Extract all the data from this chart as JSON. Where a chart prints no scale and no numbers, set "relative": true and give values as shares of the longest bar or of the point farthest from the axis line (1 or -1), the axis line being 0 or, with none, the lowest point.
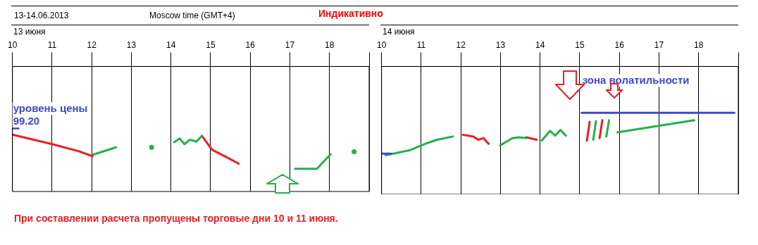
{
  "chart_data": [
    {
      "type": "line",
      "title": "13-14.06.2013",
      "subtitle": "13 июня",
      "relative": true,
      "grid": "x",
      "legend": false,
      "marker": "none",
      "line_style": "solid",
      "xlim": [
        10,
        19
      ],
      "xticks": [
        10,
        11,
        12,
        13,
        14,
        15,
        16,
        17,
        18,
        {
          "value": 19,
          "label": null
        }
      ],
      "annotations": [
        "Moscow time (GMT+4)",
        "Индикативно",
        "При составлении расчета пропущены торговые дни 10 и 11 июня.",
        {
          "text": "уровень цены 99.20",
          "x": 10,
          "y": 1
        }
      ],
      "series": [
        {
          "color": "#ed1c24",
          "x": [
            10,
            11,
            11.66,
            12.02
          ],
          "values": [
            0.9,
            0.75,
            0.64,
            0.56
          ]
        },
        {
          "color": "#22b14c",
          "x": [
            12.02,
            12.61
          ],
          "values": [
            0.58,
            0.7
          ]
        },
        {
          "type": "scatter",
          "marker": "circle",
          "color": "#22b14c",
          "x": [
            13.51
          ],
          "values": [
            0.7
          ]
        },
        {
          "color": "#22b14c",
          "x": [
            14.08,
            14.22,
            14.34,
            14.48,
            14.64,
            14.78
          ],
          "values": [
            0.78,
            0.84,
            0.75,
            0.82,
            0.79,
            0.88
          ]
        },
        {
          "color": "#ed1c24",
          "x": [
            14.78,
            15.04,
            15.38,
            15.71
          ],
          "values": [
            0.88,
            0.66,
            0.55,
            0.44
          ]
        },
        {
          "color": "#22b14c",
          "x": [
            17.13,
            17.68,
            18.03
          ],
          "values": [
            0.36,
            0.36,
            0.59
          ]
        },
        {
          "type": "scatter",
          "marker": "circle",
          "color": "#22b14c",
          "x": [
            18.62
          ],
          "values": [
            0.63
          ]
        },
        {
          "color": "#3f48cc",
          "x": [
            10,
            10.15
          ],
          "values": [
            1,
            1
          ]
        }
      ]
    },
    {
      "type": "line",
      "subtitle": "14 июня",
      "relative": true,
      "grid": "x",
      "legend": false,
      "marker": "none",
      "line_style": "solid",
      "xlim": [
        10,
        19
      ],
      "xticks": [
        10,
        11,
        12,
        13,
        14,
        15,
        16,
        17,
        18,
        {
          "value": 19,
          "label": null
        }
      ],
      "annotations": [
        {
          "text": "зона волатильности",
          "x": 15.05,
          "y": 1
        }
      ],
      "series": [
        {
          "color": "#3f48cc",
          "x": [
            10,
            10.24
          ],
          "values": [
            0.5,
            0.5
          ]
        },
        {
          "color": "#22b14c",
          "x": [
            10.1,
            10.7,
            11.1,
            11.4,
            11.8
          ],
          "values": [
            0.48,
            0.54,
            0.62,
            0.67,
            0.71
          ]
        },
        {
          "color": "#ed1c24",
          "x": [
            12.05,
            12.31,
            12.44,
            12.57,
            12.7
          ],
          "values": [
            0.73,
            0.71,
            0.67,
            0.69,
            0.62
          ]
        },
        {
          "color": "#22b14c",
          "x": [
            12.99,
            13.3,
            13.47,
            13.65
          ],
          "values": [
            0.6,
            0.69,
            0.7,
            0.69
          ]
        },
        {
          "color": "#ed1c24",
          "x": [
            13.65,
            13.91
          ],
          "values": [
            0.7,
            0.67
          ]
        },
        {
          "color": "#22b14c",
          "x": [
            14.04,
            14.25,
            14.38,
            14.51,
            14.65
          ],
          "values": [
            0.66,
            0.78,
            0.72,
            0.79,
            0.72
          ]
        },
        {
          "color": "#ed1c24",
          "x": [
            15.18,
            15.25
          ],
          "values": [
            0.66,
            0.89
          ]
        },
        {
          "color": "#22b14c",
          "x": [
            15.34,
            15.41
          ],
          "values": [
            0.67,
            0.9
          ]
        },
        {
          "color": "#ed1c24",
          "x": [
            15.5,
            15.57
          ],
          "values": [
            0.69,
            0.91
          ]
        },
        {
          "color": "#22b14c",
          "x": [
            15.67,
            15.74
          ],
          "values": [
            0.71,
            0.91
          ]
        },
        {
          "color": "#22b14c",
          "x": [
            15.95,
            17.89
          ],
          "values": [
            0.76,
            0.91
          ]
        },
        {
          "color": "#3f48cc",
          "x": [
            15.05,
            18.9
          ],
          "values": [
            1,
            1
          ]
        }
      ]
    }
  ]
}
